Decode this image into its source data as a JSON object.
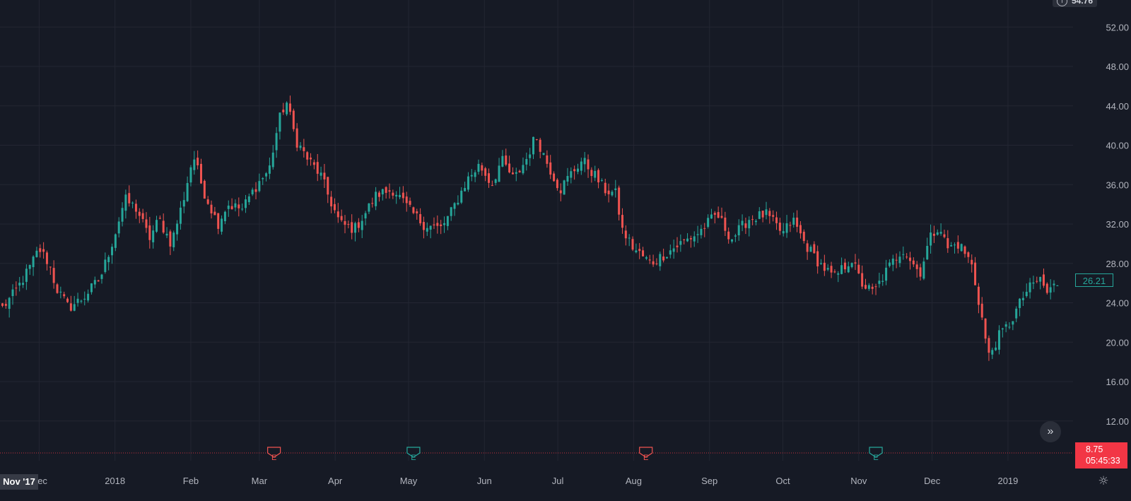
{
  "top_widget": {
    "price": "54.76",
    "icon": "info-icon"
  },
  "last_price": "26.21",
  "alert": {
    "price": "8.75",
    "countdown": "05:45:33"
  },
  "range_start_label": "Nov '17",
  "colors": {
    "up": "#26a69a",
    "down": "#ef5350",
    "grid": "#232632",
    "background": "#161a25",
    "text": "#b2b5be"
  },
  "chart_data": {
    "type": "candlestick",
    "ylim": [
      8,
      56
    ],
    "y_ticks": [
      "52.00",
      "48.00",
      "44.00",
      "40.00",
      "36.00",
      "32.00",
      "28.00",
      "24.00",
      "20.00",
      "16.00",
      "12.00"
    ],
    "x_ticks": [
      {
        "label": "Dec",
        "date": "2017-12-01"
      },
      {
        "label": "2018",
        "date": "2018-01-01"
      },
      {
        "label": "Feb",
        "date": "2018-02-01"
      },
      {
        "label": "Mar",
        "date": "2018-03-01"
      },
      {
        "label": "Apr",
        "date": "2018-04-01"
      },
      {
        "label": "May",
        "date": "2018-05-01"
      },
      {
        "label": "Jun",
        "date": "2018-06-01"
      },
      {
        "label": "Jul",
        "date": "2018-07-01"
      },
      {
        "label": "Aug",
        "date": "2018-08-01"
      },
      {
        "label": "Sep",
        "date": "2018-09-01"
      },
      {
        "label": "Oct",
        "date": "2018-10-01"
      },
      {
        "label": "Nov",
        "date": "2018-11-01"
      },
      {
        "label": "Dec",
        "date": "2018-12-01"
      },
      {
        "label": "2019",
        "date": "2019-01-01"
      }
    ],
    "earnings_markers": [
      {
        "date": "2018-03-07",
        "direction": "down",
        "label": "E"
      },
      {
        "date": "2018-05-03",
        "direction": "up",
        "label": "E"
      },
      {
        "date": "2018-08-06",
        "direction": "down",
        "label": "E"
      },
      {
        "date": "2018-11-08",
        "direction": "up",
        "label": "E"
      }
    ],
    "alert_line": 8.75,
    "close_series": [
      [
        "2017-11-16",
        23.5
      ],
      [
        "2017-11-21",
        25
      ],
      [
        "2017-11-27",
        27.5
      ],
      [
        "2017-12-01",
        29.5
      ],
      [
        "2017-12-05",
        28
      ],
      [
        "2017-12-08",
        25.5
      ],
      [
        "2017-12-13",
        23.5
      ],
      [
        "2017-12-19",
        24.5
      ],
      [
        "2017-12-26",
        26.5
      ],
      [
        "2018-01-01",
        31
      ],
      [
        "2018-01-05",
        34.5
      ],
      [
        "2018-01-10",
        33.5
      ],
      [
        "2018-01-15",
        30.5
      ],
      [
        "2018-01-19",
        32.5
      ],
      [
        "2018-01-24",
        30
      ],
      [
        "2018-01-29",
        34.5
      ],
      [
        "2018-02-02",
        39
      ],
      [
        "2018-02-06",
        35.5
      ],
      [
        "2018-02-12",
        32
      ],
      [
        "2018-02-16",
        34
      ],
      [
        "2018-02-22",
        33.5
      ],
      [
        "2018-02-28",
        36
      ],
      [
        "2018-03-05",
        37.5
      ],
      [
        "2018-03-09",
        42.5
      ],
      [
        "2018-03-12",
        44.5
      ],
      [
        "2018-03-16",
        40.5
      ],
      [
        "2018-03-21",
        38.5
      ],
      [
        "2018-03-26",
        37
      ],
      [
        "2018-03-29",
        35
      ],
      [
        "2018-04-03",
        32
      ],
      [
        "2018-04-09",
        31.5
      ],
      [
        "2018-04-13",
        33
      ],
      [
        "2018-04-18",
        35
      ],
      [
        "2018-04-25",
        35.5
      ],
      [
        "2018-05-01",
        33.5
      ],
      [
        "2018-05-07",
        32
      ],
      [
        "2018-05-14",
        31.5
      ],
      [
        "2018-05-18",
        33
      ],
      [
        "2018-05-25",
        36.5
      ],
      [
        "2018-05-30",
        38
      ],
      [
        "2018-06-04",
        36
      ],
      [
        "2018-06-08",
        38.5
      ],
      [
        "2018-06-13",
        36.5
      ],
      [
        "2018-06-18",
        38.5
      ],
      [
        "2018-06-22",
        41
      ],
      [
        "2018-06-27",
        38
      ],
      [
        "2018-07-02",
        35.5
      ],
      [
        "2018-07-06",
        37
      ],
      [
        "2018-07-11",
        38.5
      ],
      [
        "2018-07-16",
        37
      ],
      [
        "2018-07-20",
        35.5
      ],
      [
        "2018-07-25",
        35
      ],
      [
        "2018-07-27",
        31.5
      ],
      [
        "2018-08-01",
        29.5
      ],
      [
        "2018-08-08",
        28
      ],
      [
        "2018-08-14",
        29
      ],
      [
        "2018-08-20",
        30
      ],
      [
        "2018-08-27",
        31
      ],
      [
        "2018-09-04",
        33
      ],
      [
        "2018-09-10",
        30.5
      ],
      [
        "2018-09-17",
        32.5
      ],
      [
        "2018-09-24",
        33
      ],
      [
        "2018-10-01",
        31
      ],
      [
        "2018-10-05",
        32.5
      ],
      [
        "2018-10-10",
        30
      ],
      [
        "2018-10-16",
        28
      ],
      [
        "2018-10-22",
        26.5
      ],
      [
        "2018-10-29",
        28.5
      ],
      [
        "2018-11-02",
        26
      ],
      [
        "2018-11-07",
        25
      ],
      [
        "2018-11-13",
        27.5
      ],
      [
        "2018-11-19",
        29.5
      ],
      [
        "2018-11-26",
        27
      ],
      [
        "2018-11-30",
        30.5
      ],
      [
        "2018-12-04",
        32
      ],
      [
        "2018-12-07",
        29.5
      ],
      [
        "2018-12-12",
        30
      ],
      [
        "2018-12-17",
        28
      ],
      [
        "2018-12-21",
        23
      ],
      [
        "2018-12-24",
        18.5
      ],
      [
        "2018-12-28",
        20.5
      ],
      [
        "2019-01-02",
        22
      ],
      [
        "2019-01-08",
        25
      ],
      [
        "2019-01-14",
        26.5
      ],
      [
        "2019-01-17",
        25
      ],
      [
        "2019-01-22",
        26.21
      ]
    ]
  }
}
